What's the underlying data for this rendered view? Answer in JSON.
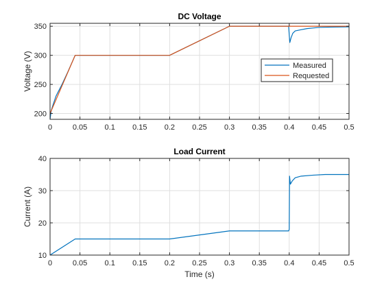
{
  "chart_data": [
    {
      "type": "line",
      "title": "DC Voltage",
      "xlabel": "",
      "ylabel": "Voltage (V)",
      "xlim": [
        0,
        0.5
      ],
      "ylim": [
        190,
        355
      ],
      "xticks": [
        0,
        0.05,
        0.1,
        0.15,
        0.2,
        0.25,
        0.3,
        0.35,
        0.4,
        0.45,
        0.5
      ],
      "xtick_labels": [
        "0",
        "0.05",
        "0.1",
        "0.15",
        "0.2",
        "0.25",
        "0.3",
        "0.35",
        "0.4",
        "0.45",
        "0.5"
      ],
      "yticks": [
        200,
        250,
        300,
        350
      ],
      "ytick_labels": [
        "200",
        "250",
        "300",
        "350"
      ],
      "grid": true,
      "legend_position": "right",
      "series": [
        {
          "name": "Measured",
          "color": "#0072BD",
          "x": [
            0,
            0.002,
            0.005,
            0.01,
            0.02,
            0.03,
            0.042,
            0.06,
            0.1,
            0.15,
            0.2,
            0.25,
            0.3,
            0.35,
            0.399,
            0.4,
            0.401,
            0.403,
            0.406,
            0.41,
            0.415,
            0.42,
            0.43,
            0.44,
            0.45,
            0.47,
            0.5
          ],
          "y": [
            190,
            205,
            215,
            230,
            250,
            272,
            300,
            300,
            300,
            300,
            300,
            325,
            350,
            350,
            350,
            335,
            322,
            330,
            338,
            342,
            343,
            344,
            346,
            347,
            348,
            348.5,
            349
          ]
        },
        {
          "name": "Requested",
          "color": "#D95319",
          "x": [
            0,
            0.042,
            0.2,
            0.3,
            0.5
          ],
          "y": [
            200,
            300,
            300,
            350,
            350
          ]
        }
      ]
    },
    {
      "type": "line",
      "title": "Load Current",
      "xlabel": "Time (s)",
      "ylabel": "Current (A)",
      "xlim": [
        0,
        0.5
      ],
      "ylim": [
        10,
        40
      ],
      "xticks": [
        0,
        0.05,
        0.1,
        0.15,
        0.2,
        0.25,
        0.3,
        0.35,
        0.4,
        0.45,
        0.5
      ],
      "xtick_labels": [
        "0",
        "0.05",
        "0.1",
        "0.15",
        "0.2",
        "0.25",
        "0.3",
        "0.35",
        "0.4",
        "0.45",
        "0.5"
      ],
      "yticks": [
        10,
        20,
        30,
        40
      ],
      "ytick_labels": [
        "10",
        "20",
        "30",
        "40"
      ],
      "grid": true,
      "series": [
        {
          "color": "#0072BD",
          "x": [
            0,
            0.042,
            0.1,
            0.2,
            0.3,
            0.399,
            0.4,
            0.4005,
            0.402,
            0.405,
            0.41,
            0.42,
            0.44,
            0.46,
            0.5
          ],
          "y": [
            10,
            15,
            15,
            15,
            17.5,
            17.5,
            18,
            34.5,
            32,
            33,
            34,
            34.5,
            34.8,
            35,
            35
          ]
        }
      ]
    }
  ]
}
